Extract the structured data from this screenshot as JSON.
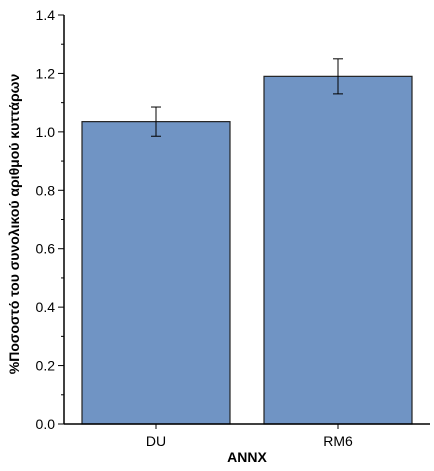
{
  "chart_data": {
    "type": "bar",
    "title": "",
    "xlabel": "ANNX",
    "ylabel": "%Ποσοστό του συνολικού αριθμού κυττάρων",
    "categories": [
      "DU",
      "RM6"
    ],
    "values": [
      1.035,
      1.19
    ],
    "errors": [
      0.05,
      0.06
    ],
    "ylim": [
      0.0,
      1.4
    ],
    "yticks": [
      "0.0",
      "0.2",
      "0.4",
      "0.6",
      "0.8",
      "1.0",
      "1.2",
      "1.4"
    ],
    "grid": false,
    "legend": "none",
    "colors": {
      "bar_fill": "#7094c4",
      "bar_stroke": "#222222",
      "axis": "#000000"
    }
  }
}
